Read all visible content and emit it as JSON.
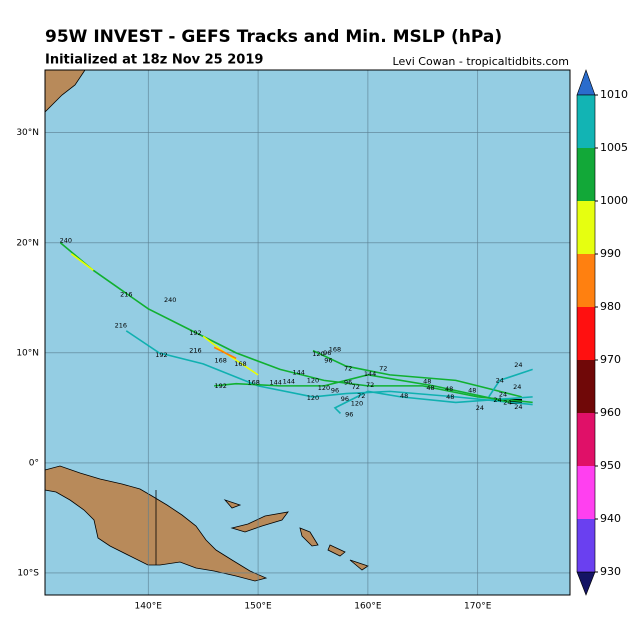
{
  "header": {
    "title": "95W INVEST - GEFS Tracks and Min. MSLP (hPa)",
    "subtitle": "Initialized at 18z Nov 25 2019",
    "credit": "Levi Cowan - tropicaltidbits.com"
  },
  "map": {
    "lonlim": [
      130.6,
      178.4
    ],
    "latlim": [
      -12,
      35.7
    ],
    "lat_ticks": [
      {
        "value": 30,
        "label": "30°N"
      },
      {
        "value": 20,
        "label": "20°N"
      },
      {
        "value": 10,
        "label": "10°N"
      },
      {
        "value": 0,
        "label": "0°"
      },
      {
        "value": -10,
        "label": "10°S"
      }
    ],
    "lon_ticks": [
      {
        "value": 140,
        "label": "140°E"
      },
      {
        "value": 150,
        "label": "150°E"
      },
      {
        "value": 160,
        "label": "160°E"
      },
      {
        "value": 170,
        "label": "170°E"
      }
    ],
    "tracks": [
      {
        "color": "#10b030",
        "lon": [
          175,
          170,
          165,
          160,
          156,
          152,
          148,
          144,
          140,
          135,
          132
        ],
        "lat": [
          5.5,
          6,
          7,
          7,
          7.5,
          8.5,
          10,
          12,
          14,
          17.5,
          20
        ]
      },
      {
        "color": "#10b0b0",
        "lon": [
          175,
          168,
          162,
          158,
          155,
          150,
          145,
          141,
          138
        ],
        "lat": [
          5.3,
          6,
          6.5,
          6.3,
          6,
          7,
          9,
          10,
          12
        ]
      },
      {
        "color": "#10b030",
        "lon": [
          174,
          168,
          162,
          158,
          155
        ],
        "lat": [
          6,
          7.5,
          8,
          8.8,
          10.2
        ]
      },
      {
        "color": "#10b0b0",
        "lon": [
          175,
          168,
          163,
          160,
          157,
          157.5
        ],
        "lat": [
          6,
          5.5,
          6,
          6.5,
          5,
          4.5
        ]
      },
      {
        "color": "#10b030",
        "lon": [
          173,
          166,
          160,
          156,
          152,
          148,
          146
        ],
        "lat": [
          5.5,
          7,
          8,
          7,
          7,
          7.2,
          7
        ]
      },
      {
        "color": "#e8ff00",
        "lon": [
          145,
          147,
          150
        ],
        "lat": [
          11.5,
          10,
          8
        ]
      },
      {
        "color": "#ff7f00",
        "lon": [
          146,
          148
        ],
        "lat": [
          10.5,
          9.5
        ]
      },
      {
        "color": "#e8ff00",
        "lon": [
          133,
          135
        ],
        "lat": [
          19,
          17.5
        ]
      },
      {
        "color": "#10b0b0",
        "lon": [
          171,
          172,
          175
        ],
        "lat": [
          6,
          7.5,
          8.5
        ]
      }
    ],
    "track_labels": [
      {
        "label": "240",
        "lon": 132.5,
        "lat": 20.2
      },
      {
        "label": "216",
        "lon": 138,
        "lat": 15.3
      },
      {
        "label": "240",
        "lon": 142,
        "lat": 14.8
      },
      {
        "label": "216",
        "lon": 137.5,
        "lat": 12.5
      },
      {
        "label": "192",
        "lon": 144.3,
        "lat": 11.8
      },
      {
        "label": "192",
        "lon": 141.2,
        "lat": 9.8
      },
      {
        "label": "216",
        "lon": 144.3,
        "lat": 10.2
      },
      {
        "label": "168",
        "lon": 146.6,
        "lat": 9.3
      },
      {
        "label": "168",
        "lon": 148.4,
        "lat": 9
      },
      {
        "label": "192",
        "lon": 146.6,
        "lat": 7
      },
      {
        "label": "168",
        "lon": 149.6,
        "lat": 7.3
      },
      {
        "label": "144",
        "lon": 151.6,
        "lat": 7.3
      },
      {
        "label": "144",
        "lon": 152.8,
        "lat": 7.4
      },
      {
        "label": "144",
        "lon": 153.7,
        "lat": 8.2
      },
      {
        "label": "120",
        "lon": 155,
        "lat": 7.5
      },
      {
        "label": "120",
        "lon": 155,
        "lat": 5.9
      },
      {
        "label": "120",
        "lon": 155.5,
        "lat": 9.9
      },
      {
        "label": "96",
        "lon": 156.3,
        "lat": 10
      },
      {
        "label": "168",
        "lon": 157,
        "lat": 10.3
      },
      {
        "label": "96",
        "lon": 156.4,
        "lat": 9.3
      },
      {
        "label": "72",
        "lon": 158.2,
        "lat": 8.6
      },
      {
        "label": "120",
        "lon": 156,
        "lat": 6.8
      },
      {
        "label": "96",
        "lon": 157,
        "lat": 6.6
      },
      {
        "label": "96",
        "lon": 158.2,
        "lat": 7.3
      },
      {
        "label": "72",
        "lon": 158.9,
        "lat": 6.9
      },
      {
        "label": "72",
        "lon": 159.4,
        "lat": 6.1
      },
      {
        "label": "96",
        "lon": 157.9,
        "lat": 5.8
      },
      {
        "label": "120",
        "lon": 159,
        "lat": 5.4
      },
      {
        "label": "96",
        "lon": 158.3,
        "lat": 4.4
      },
      {
        "label": "144",
        "lon": 160.2,
        "lat": 8.1
      },
      {
        "label": "72",
        "lon": 160.2,
        "lat": 7.1
      },
      {
        "label": "72",
        "lon": 161.4,
        "lat": 8.6
      },
      {
        "label": "48",
        "lon": 163.3,
        "lat": 6.1
      },
      {
        "label": "48",
        "lon": 165.4,
        "lat": 7.4
      },
      {
        "label": "48",
        "lon": 165.7,
        "lat": 6.8
      },
      {
        "label": "48",
        "lon": 167.4,
        "lat": 6.7
      },
      {
        "label": "48",
        "lon": 167.5,
        "lat": 6
      },
      {
        "label": "48",
        "lon": 169.5,
        "lat": 6.6
      },
      {
        "label": "24",
        "lon": 172,
        "lat": 7.5
      },
      {
        "label": "24",
        "lon": 173.7,
        "lat": 8.9
      },
      {
        "label": "24",
        "lon": 173.6,
        "lat": 6.9
      },
      {
        "label": "24",
        "lon": 172.3,
        "lat": 6.2
      },
      {
        "label": "24",
        "lon": 171.8,
        "lat": 5.7
      },
      {
        "label": "24",
        "lon": 172.7,
        "lat": 5.5
      },
      {
        "label": "24",
        "lon": 170.2,
        "lat": 5
      },
      {
        "label": "24",
        "lon": 173.7,
        "lat": 5.1
      }
    ]
  },
  "colorbar": {
    "ticks": [
      1010,
      1005,
      1000,
      990,
      980,
      970,
      960,
      950,
      940,
      930
    ],
    "colors": [
      "#12b4b4",
      "#12a838",
      "#e6ff10",
      "#ff8010",
      "#ff1010",
      "#700808",
      "#e01068",
      "#ff40f0",
      "#6a40f0"
    ],
    "over_color": "#2a6ccc",
    "under_color": "#141464"
  }
}
